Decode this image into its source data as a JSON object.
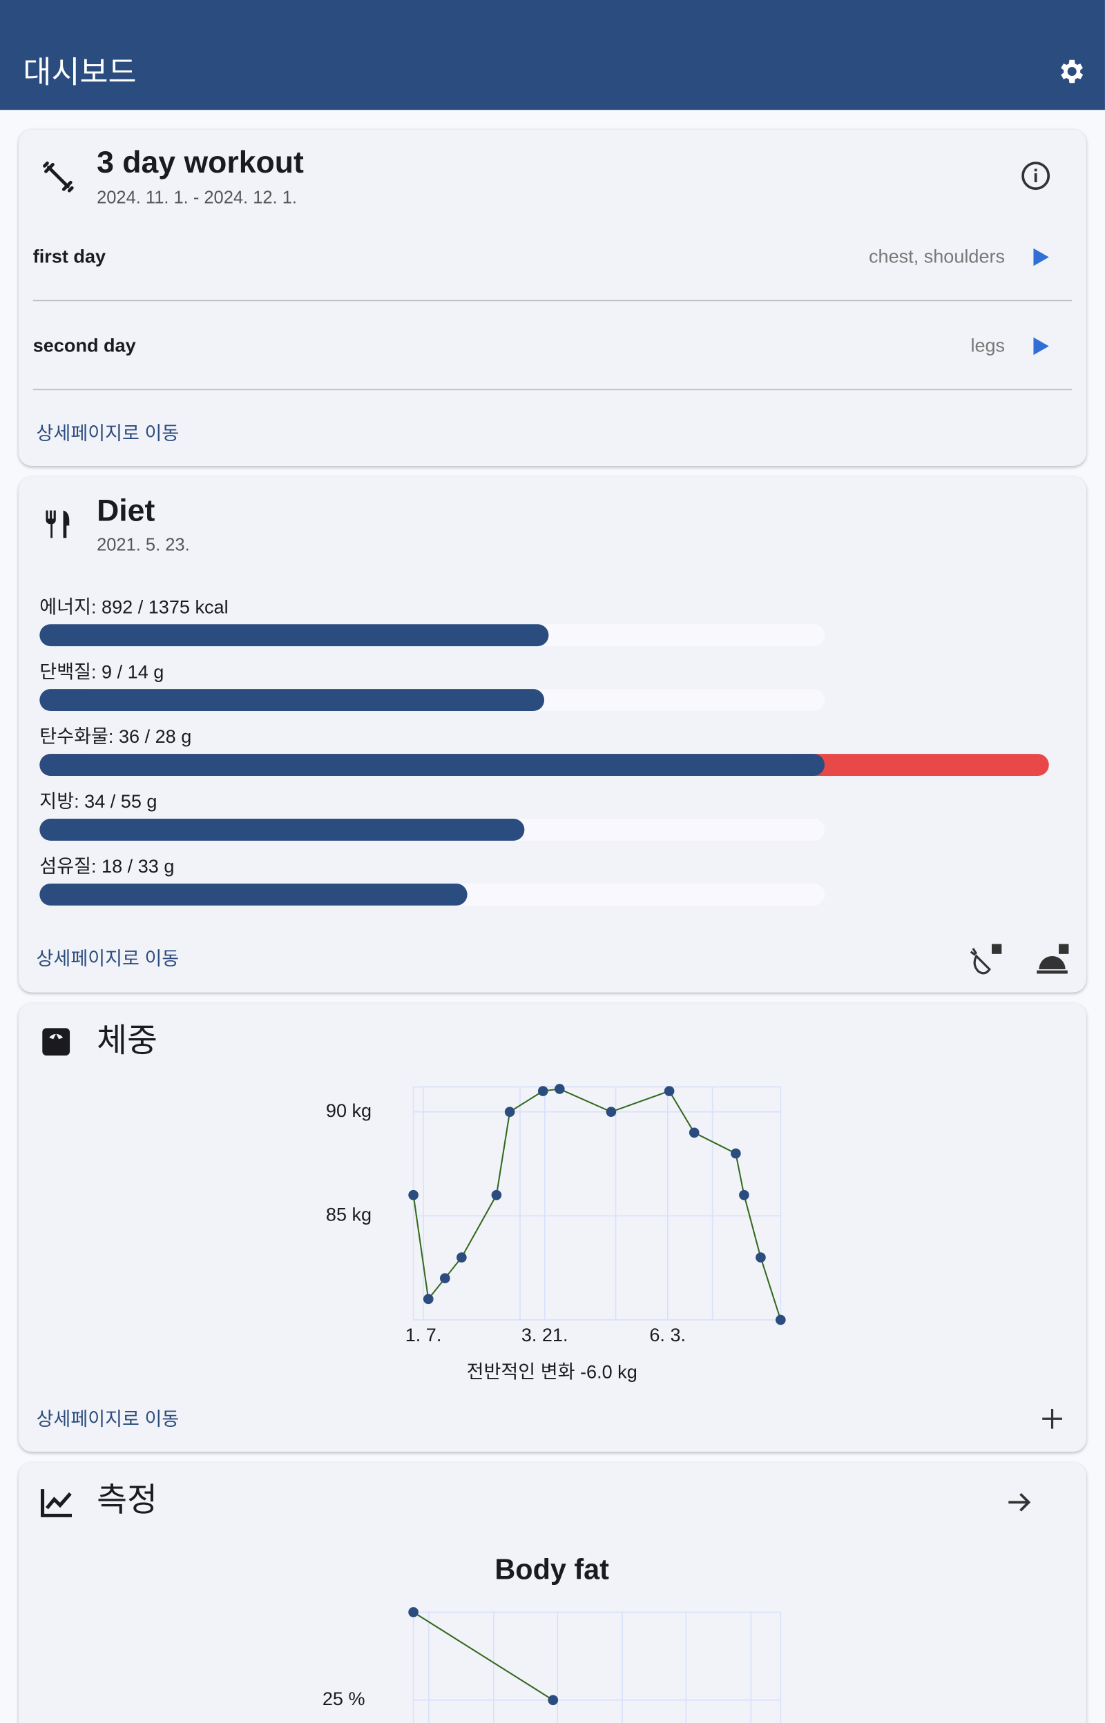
{
  "app_bar": {
    "title": "대시보드"
  },
  "workout": {
    "title": "3 day workout",
    "date_range": "2024. 11. 1. - 2024. 12. 1.",
    "days": [
      {
        "name": "first day",
        "muscles": "chest, shoulders"
      },
      {
        "name": "second day",
        "muscles": "legs"
      }
    ],
    "link": "상세페이지로 이동"
  },
  "diet": {
    "title": "Diet",
    "date": "2021. 5. 23.",
    "nutrients": [
      {
        "label": "에너지: 892 / 1375 kcal",
        "value": 892,
        "goal": 1375
      },
      {
        "label": "단백질: 9 / 14 g",
        "value": 9,
        "goal": 14
      },
      {
        "label": "탄수화물: 36 / 28 g",
        "value": 36,
        "goal": 28
      },
      {
        "label": "지방: 34 / 55 g",
        "value": 34,
        "goal": 55
      },
      {
        "label": "섬유질: 18 / 33 g",
        "value": 18,
        "goal": 33
      }
    ],
    "bar_color": "#2b4c7e",
    "over_color": "#e84848",
    "link": "상세페이지로 이동"
  },
  "weight": {
    "title": "체중",
    "chart_data": {
      "type": "line",
      "x": [
        "01-01",
        "01-10",
        "01-20",
        "01-30",
        "02-20",
        "02-28",
        "03-20",
        "03-30",
        "04-30",
        "06-04",
        "06-19",
        "07-14",
        "07-19",
        "07-29",
        "08-10"
      ],
      "values": [
        86,
        81,
        82,
        83,
        86,
        90,
        91,
        91.1,
        90,
        91,
        89,
        88,
        86,
        83,
        80
      ],
      "xlim": [
        "01-01",
        "08-10"
      ],
      "xticks": [
        {
          "value": "01-07",
          "label": "1. 7."
        },
        {
          "value": "03-21",
          "label": "3. 21."
        },
        {
          "value": "06-03",
          "label": "6. 3."
        }
      ],
      "ylim": [
        80,
        91.2
      ],
      "yticks": [
        {
          "value": 85,
          "label": "85 kg"
        },
        {
          "value": 90,
          "label": "90 kg"
        }
      ],
      "grid": true,
      "line_color": "#33691e",
      "point_color": "#2b4c7e"
    },
    "summary": "전반적인 변화 -6.0 kg",
    "link": "상세페이지로 이동"
  },
  "measurements": {
    "title": "측정",
    "chart_data": {
      "type": "line",
      "title": "Body fat",
      "categories": [
        null,
        null
      ],
      "values": [
        27,
        25
      ],
      "ylim": [
        23,
        27
      ],
      "yticks": [
        {
          "value": 25,
          "label": "25 %"
        }
      ],
      "grid": true,
      "line_color": "#33691e",
      "point_color": "#2b4c7e"
    }
  }
}
